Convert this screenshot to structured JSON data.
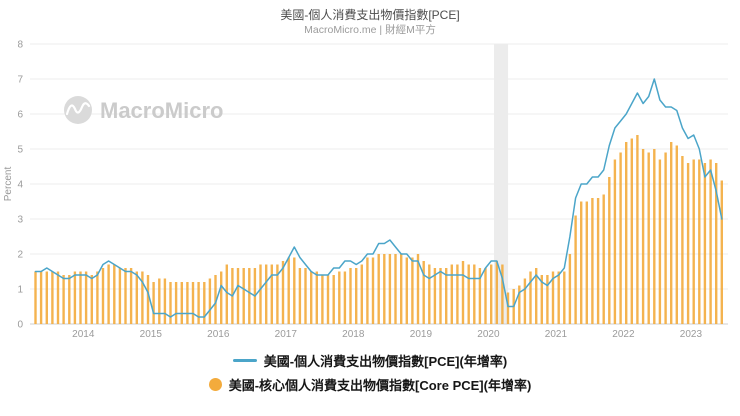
{
  "header": {
    "title": "美國-個人消費支出物價指數[PCE]",
    "subtitle": "MacroMicro.me | 財經M平方"
  },
  "watermark": {
    "text": "MacroMicro"
  },
  "legend": [
    {
      "label": "美國-個人消費支出物價指數[PCE](年增率)",
      "type": "line",
      "color": "#4ba5c9"
    },
    {
      "label": "美國-核心個人消費支出物價指數[Core PCE](年增率)",
      "type": "bar",
      "color": "#f3ab3c"
    }
  ],
  "chart_data": {
    "type": "line+bar",
    "title": "美國-個人消費支出物價指數[PCE]",
    "ylabel": "Percent",
    "ylim": [
      0,
      8
    ],
    "yticks": [
      0,
      1,
      2,
      3,
      4,
      5,
      6,
      7,
      8
    ],
    "xticks": [
      2014,
      2015,
      2016,
      2017,
      2018,
      2019,
      2020,
      2021,
      2022,
      2023
    ],
    "x_start": "2013-04",
    "x_end": "2023-06",
    "frequency": "monthly",
    "grid": "horizontal",
    "legend_position": "bottom",
    "recession_band": {
      "from": "2020-02",
      "to": "2020-04"
    },
    "series": [
      {
        "name": "美國-個人消費支出物價指數[PCE](年增率)",
        "type": "line",
        "color": "#4ba5c9",
        "values": [
          1.5,
          1.5,
          1.6,
          1.5,
          1.4,
          1.3,
          1.3,
          1.4,
          1.4,
          1.4,
          1.3,
          1.4,
          1.7,
          1.8,
          1.7,
          1.6,
          1.5,
          1.5,
          1.4,
          1.2,
          0.9,
          0.3,
          0.3,
          0.3,
          0.2,
          0.3,
          0.3,
          0.3,
          0.3,
          0.2,
          0.2,
          0.4,
          0.6,
          1.1,
          0.9,
          0.8,
          1.1,
          1.0,
          0.9,
          0.8,
          1.0,
          1.2,
          1.4,
          1.4,
          1.6,
          1.9,
          2.2,
          1.9,
          1.7,
          1.5,
          1.4,
          1.4,
          1.4,
          1.6,
          1.6,
          1.8,
          1.8,
          1.7,
          1.8,
          2.0,
          2.0,
          2.3,
          2.3,
          2.4,
          2.2,
          2.0,
          2.0,
          1.8,
          1.8,
          1.4,
          1.3,
          1.4,
          1.5,
          1.4,
          1.4,
          1.4,
          1.4,
          1.3,
          1.3,
          1.3,
          1.6,
          1.8,
          1.8,
          1.3,
          0.5,
          0.5,
          0.9,
          1.0,
          1.2,
          1.4,
          1.2,
          1.1,
          1.3,
          1.4,
          1.6,
          2.5,
          3.6,
          4.0,
          4.0,
          4.2,
          4.2,
          4.4,
          5.1,
          5.6,
          5.8,
          6.0,
          6.3,
          6.6,
          6.3,
          6.5,
          7.0,
          6.4,
          6.2,
          6.2,
          6.1,
          5.6,
          5.3,
          5.4,
          5.0,
          4.2,
          4.4,
          3.8,
          3.0
        ]
      },
      {
        "name": "美國-核心個人消費支出物價指數[Core PCE](年增率)",
        "type": "bar",
        "color": "#f3ab3c",
        "values": [
          1.5,
          1.5,
          1.5,
          1.5,
          1.5,
          1.4,
          1.4,
          1.5,
          1.5,
          1.5,
          1.4,
          1.5,
          1.6,
          1.7,
          1.7,
          1.6,
          1.6,
          1.6,
          1.5,
          1.5,
          1.4,
          1.2,
          1.3,
          1.3,
          1.2,
          1.2,
          1.2,
          1.2,
          1.2,
          1.2,
          1.2,
          1.3,
          1.4,
          1.5,
          1.7,
          1.6,
          1.6,
          1.6,
          1.6,
          1.6,
          1.7,
          1.7,
          1.7,
          1.7,
          1.8,
          1.9,
          1.9,
          1.6,
          1.6,
          1.5,
          1.5,
          1.4,
          1.4,
          1.4,
          1.5,
          1.5,
          1.6,
          1.6,
          1.7,
          1.9,
          1.9,
          2.0,
          2.0,
          2.0,
          2.0,
          2.0,
          1.9,
          1.9,
          2.0,
          1.8,
          1.7,
          1.6,
          1.6,
          1.6,
          1.7,
          1.7,
          1.8,
          1.7,
          1.7,
          1.6,
          1.6,
          1.7,
          1.8,
          1.7,
          0.9,
          1.0,
          1.1,
          1.3,
          1.5,
          1.6,
          1.4,
          1.4,
          1.5,
          1.5,
          1.5,
          2.0,
          3.1,
          3.5,
          3.5,
          3.6,
          3.6,
          3.7,
          4.2,
          4.7,
          4.9,
          5.2,
          5.3,
          5.4,
          5.0,
          4.9,
          5.0,
          4.7,
          4.9,
          5.2,
          5.1,
          4.8,
          4.6,
          4.7,
          4.7,
          4.6,
          4.7,
          4.6,
          4.1
        ]
      }
    ]
  }
}
